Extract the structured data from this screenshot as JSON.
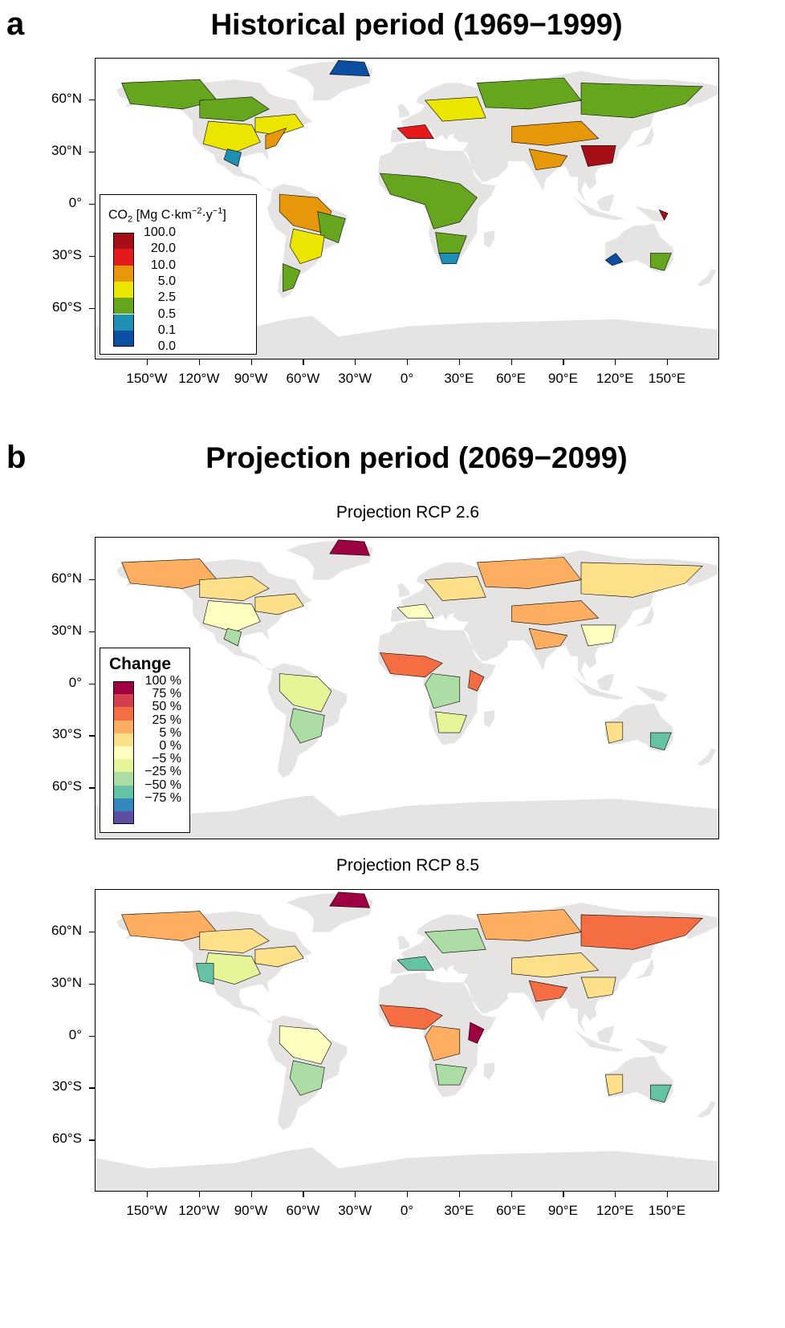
{
  "panel_a": {
    "letter": "a",
    "title": "Historical period (1969−1999)",
    "legend": {
      "title_pre": "CO",
      "title_sub": "2",
      "title_unit_a": " [Mg C·km",
      "title_sup1": "−2",
      "title_unit_b": "·y",
      "title_sup2": "−1",
      "title_unit_c": "]",
      "labels": [
        "100.0",
        "20.0",
        "10.0",
        "5.0",
        "2.5",
        "0.5",
        "0.1",
        "0.0"
      ],
      "colors": [
        "#a50f15",
        "#e41a1c",
        "#e6980a",
        "#ebe500",
        "#66a61e",
        "#1f8fb4",
        "#0b4ea2"
      ]
    }
  },
  "panel_b": {
    "letter": "b",
    "title": "Projection period (2069−2099)",
    "maps": [
      {
        "subtitle": "Projection RCP 2.6"
      },
      {
        "subtitle": "Projection RCP 8.5"
      }
    ],
    "legend": {
      "title": "Change",
      "labels": [
        "100 %",
        "75 %",
        "50 %",
        "25 %",
        "5 %",
        "0 %",
        "−5 %",
        "−25 %",
        "−50 %",
        "−75 %"
      ],
      "colors": [
        "#9e0142",
        "#d53e4f",
        "#f46d43",
        "#fdae61",
        "#fee08b",
        "#ffffbf",
        "#e6f598",
        "#abdda4",
        "#66c2a5",
        "#3288bd",
        "#5e4fa2"
      ]
    }
  },
  "axes": {
    "y_labels": [
      "60°N",
      "30°N",
      "0°",
      "30°S",
      "60°S"
    ],
    "x_labels": [
      "150°W",
      "120°W",
      "90°W",
      "60°W",
      "30°W",
      "0°",
      "30°E",
      "60°E",
      "90°E",
      "120°E",
      "150°E"
    ]
  },
  "colors": {
    "land_background": "#e6e3e3",
    "border": "#000000"
  }
}
